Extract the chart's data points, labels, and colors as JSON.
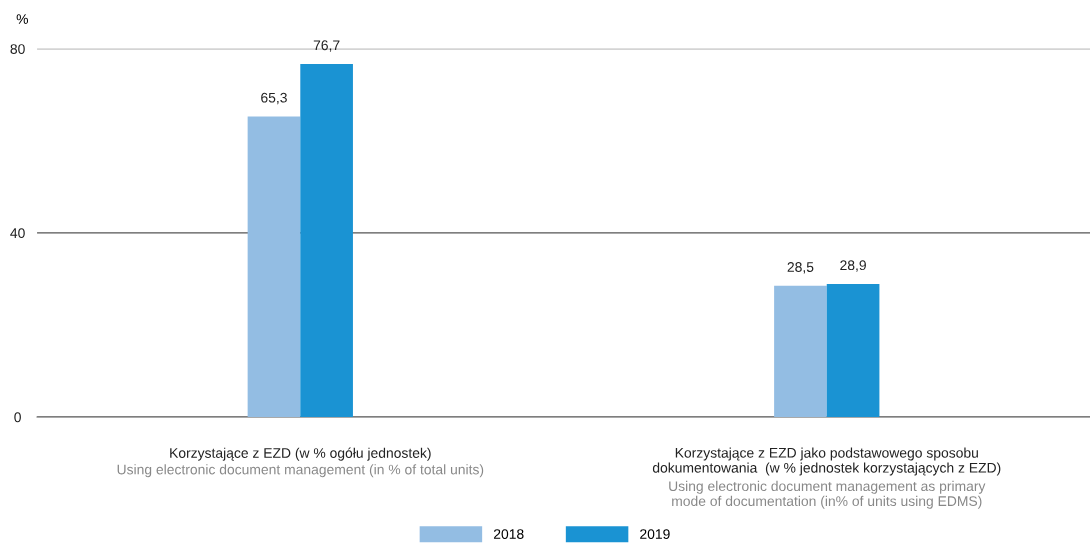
{
  "chart_data": {
    "type": "bar",
    "ylabel": "%",
    "categories": [
      "Korzystające z EZD (w % ogółu jednostek)",
      "Korzystające z EZD jako podstawowego sposobu\ndokumentowania  (w % jednostek korzystających z EZD)"
    ],
    "series": [
      {
        "name": "2018",
        "color": "#93bde3",
        "values": [
          65.3,
          28.5
        ],
        "value_labels": [
          "65,3",
          "28,5"
        ]
      },
      {
        "name": "2019",
        "color": "#1a93d3",
        "values": [
          76.7,
          28.9
        ],
        "value_labels": [
          "76,7",
          "28,9"
        ]
      }
    ],
    "ylim": [
      0,
      80
    ],
    "yticks": [
      0,
      40,
      80
    ],
    "grid": "y",
    "legend": "bottom",
    "annotations": [
      "Using electronic document management (in % of total units)",
      "Using electronic document management as primary\nmode of documentation (in% of units using EDMS)"
    ]
  }
}
